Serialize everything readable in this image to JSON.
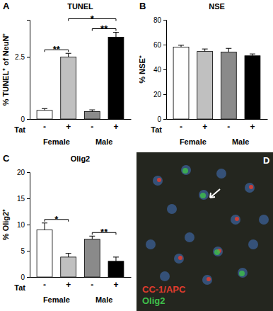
{
  "chart_data": [
    {
      "type": "bar",
      "panel": "A",
      "title": "TUNEL",
      "y_label": "% TUNEL⁺ of NeuN⁺",
      "x_label": "Tat",
      "groups": [
        "Female",
        "Male"
      ],
      "categories": [
        "-",
        "+",
        "-",
        "+"
      ],
      "values": [
        0.35,
        2.5,
        0.3,
        3.3
      ],
      "errors": [
        0.07,
        0.15,
        0.07,
        0.2
      ],
      "colors": [
        "#ffffff",
        "#c0c0c0",
        "#8a8a8a",
        "#000000"
      ],
      "ylim": [
        0,
        4
      ],
      "yticks": [
        0,
        2.5
      ],
      "brackets": [
        {
          "from": 0,
          "to": 1,
          "label": "**"
        },
        {
          "from": 2,
          "to": 3,
          "label": "**"
        },
        {
          "from": 1,
          "to": 3,
          "label": "*"
        }
      ]
    },
    {
      "type": "bar",
      "panel": "B",
      "title": "NSE",
      "y_label": "% NSE⁺",
      "x_label": "Tat",
      "groups": [
        "Female",
        "Male"
      ],
      "categories": [
        "-",
        "+",
        "-",
        "+"
      ],
      "values": [
        58,
        54.5,
        54,
        51
      ],
      "errors": [
        1.5,
        2,
        3,
        1.5
      ],
      "colors": [
        "#ffffff",
        "#c0c0c0",
        "#8a8a8a",
        "#000000"
      ],
      "ylim": [
        0,
        80
      ],
      "yticks": [
        0,
        20,
        40,
        60,
        80
      ],
      "brackets": []
    },
    {
      "type": "bar",
      "panel": "C",
      "title": "Olig2",
      "y_label": "% Olig2⁺",
      "x_label": "Tat",
      "groups": [
        "Female",
        "Male"
      ],
      "categories": [
        "-",
        "+",
        "-",
        "+"
      ],
      "values": [
        9,
        3.8,
        7.2,
        3
      ],
      "errors": [
        1.3,
        0.7,
        0.6,
        0.8
      ],
      "colors": [
        "#ffffff",
        "#c0c0c0",
        "#8a8a8a",
        "#000000"
      ],
      "ylim": [
        0,
        20
      ],
      "yticks": [
        0,
        5,
        10,
        15,
        20
      ],
      "brackets": [
        {
          "from": 0,
          "to": 1,
          "label": "*"
        },
        {
          "from": 2,
          "to": 3,
          "label": "**"
        }
      ]
    },
    {
      "type": "image",
      "panel": "D",
      "annotations": [
        "CC-1/APC",
        "Olig2"
      ],
      "colors": [
        "#e23c2e",
        "#3fbf4a"
      ]
    }
  ]
}
